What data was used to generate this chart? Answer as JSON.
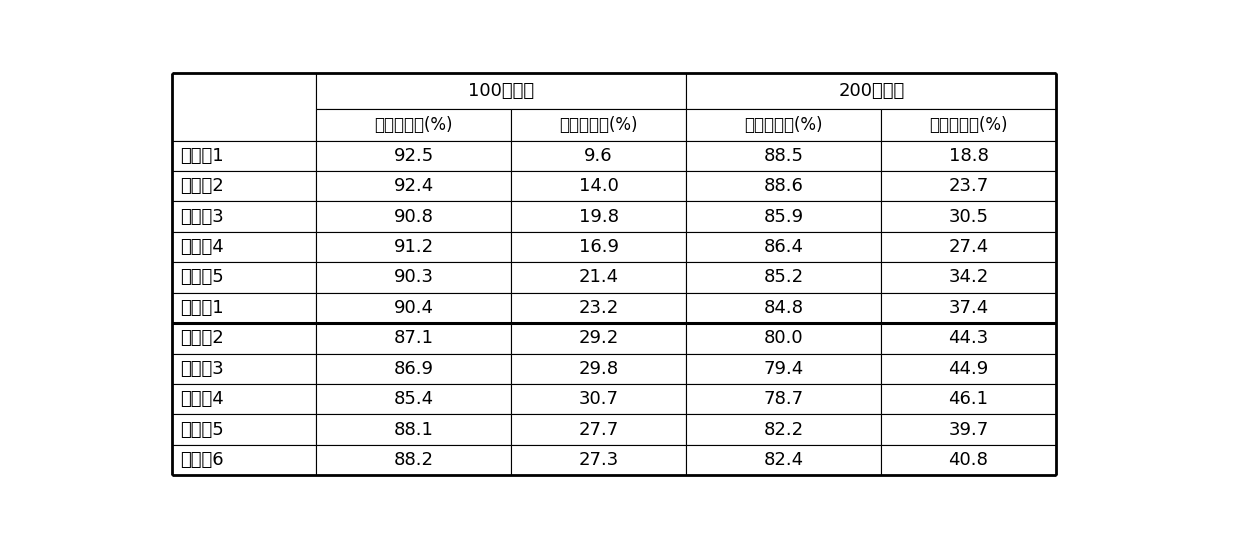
{
  "header1_left": "100次循环",
  "header1_right": "200次循环",
  "subheader": [
    "容量保留率(%)",
    "电阵增加率(%)",
    "容量保留率(%)",
    "电阵增加率(%)"
  ],
  "rows": [
    [
      "实施例1",
      "92.5",
      "9.6",
      "88.5",
      "18.8"
    ],
    [
      "实施例2",
      "92.4",
      "14.0",
      "88.6",
      "23.7"
    ],
    [
      "实施例3",
      "90.8",
      "19.8",
      "85.9",
      "30.5"
    ],
    [
      "实施例4",
      "91.2",
      "16.9",
      "86.4",
      "27.4"
    ],
    [
      "实施例5",
      "90.3",
      "21.4",
      "85.2",
      "34.2"
    ],
    [
      "比较例1",
      "90.4",
      "23.2",
      "84.8",
      "37.4"
    ],
    [
      "比较例2",
      "87.1",
      "29.2",
      "80.0",
      "44.3"
    ],
    [
      "比较例3",
      "86.9",
      "29.8",
      "79.4",
      "44.9"
    ],
    [
      "比较例4",
      "85.4",
      "30.7",
      "78.7",
      "46.1"
    ],
    [
      "比较例5",
      "88.1",
      "27.7",
      "82.2",
      "39.7"
    ],
    [
      "比较例6",
      "88.2",
      "27.3",
      "82.4",
      "40.8"
    ]
  ],
  "thick_border_after_row": 6,
  "background_color": "#ffffff",
  "text_color": "#000000",
  "font_size": 13,
  "header_font_size": 13
}
